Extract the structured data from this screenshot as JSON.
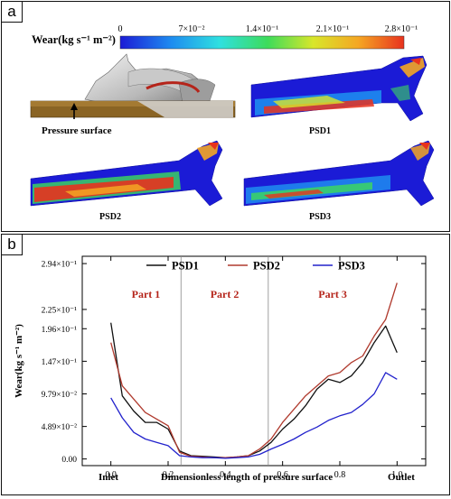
{
  "panel_a": {
    "label": "a",
    "colorbar": {
      "title": "Wear(kg s⁻¹ m⁻²)",
      "ticks": [
        "0",
        "7×10⁻²",
        "1.4×10⁻¹",
        "2.1×10⁻¹",
        "2.8×10⁻¹"
      ],
      "colors": [
        "#1b1bd6",
        "#1e8cf0",
        "#2fe0e0",
        "#3ddc5a",
        "#d8e62a",
        "#f5a623",
        "#e8321e"
      ]
    },
    "pressure_surface_label": "Pressure surface",
    "maps": [
      "PSD1",
      "PSD2",
      "PSD3"
    ]
  },
  "panel_b": {
    "label": "b"
  },
  "chart_data": {
    "type": "line",
    "xlabel": "Dimensionless length of pressure surface",
    "ylabel": "Wear(kg s⁻¹ m⁻²)",
    "xlim": [
      -0.1,
      1.1
    ],
    "ylim": [
      -0.1,
      3.05
    ],
    "x_ticks": [
      "0.0",
      "0.2",
      "0.4",
      "0.6",
      "0.8",
      "1.0"
    ],
    "x_end_labels": {
      "left": "Inlet",
      "right": "Outlet"
    },
    "y_tick_values": [
      0,
      0.489,
      0.979,
      1.47,
      1.96,
      2.25,
      2.94
    ],
    "y_tick_labels": [
      "0.00",
      "4.89×10⁻²",
      "9.79×10⁻²",
      "1.47×10⁻¹",
      "1.96×10⁻¹",
      "2.25×10⁻¹",
      "2.94×10⁻¹"
    ],
    "regions": [
      {
        "label": "Part 1",
        "from": 0.0,
        "to": 0.245
      },
      {
        "label": "Part 2",
        "from": 0.245,
        "to": 0.55
      },
      {
        "label": "Part 3",
        "from": 0.55,
        "to": 1.0
      }
    ],
    "legend_position": "top-center",
    "x": [
      0,
      0.04,
      0.08,
      0.12,
      0.16,
      0.2,
      0.24,
      0.28,
      0.32,
      0.36,
      0.4,
      0.44,
      0.48,
      0.52,
      0.56,
      0.6,
      0.64,
      0.68,
      0.72,
      0.76,
      0.8,
      0.84,
      0.88,
      0.92,
      0.96,
      1.0
    ],
    "series": [
      {
        "name": "PSD1",
        "color": "#111111",
        "values": [
          2.05,
          0.95,
          0.72,
          0.55,
          0.55,
          0.45,
          0.12,
          0.05,
          0.04,
          0.03,
          0.02,
          0.03,
          0.05,
          0.12,
          0.25,
          0.45,
          0.6,
          0.8,
          1.05,
          1.2,
          1.15,
          1.25,
          1.45,
          1.75,
          2.0,
          1.6
        ]
      },
      {
        "name": "PSD2",
        "color": "#b03a2e",
        "values": [
          1.75,
          1.1,
          0.9,
          0.7,
          0.6,
          0.5,
          0.1,
          0.04,
          0.03,
          0.02,
          0.02,
          0.03,
          0.05,
          0.15,
          0.3,
          0.55,
          0.75,
          0.95,
          1.1,
          1.25,
          1.3,
          1.45,
          1.55,
          1.85,
          2.1,
          2.65
        ]
      },
      {
        "name": "PSD3",
        "color": "#2222cc",
        "values": [
          0.92,
          0.62,
          0.4,
          0.3,
          0.25,
          0.2,
          0.05,
          0.03,
          0.02,
          0.02,
          0.01,
          0.02,
          0.03,
          0.07,
          0.15,
          0.22,
          0.3,
          0.4,
          0.48,
          0.58,
          0.65,
          0.7,
          0.82,
          0.98,
          1.3,
          1.2
        ]
      }
    ]
  }
}
